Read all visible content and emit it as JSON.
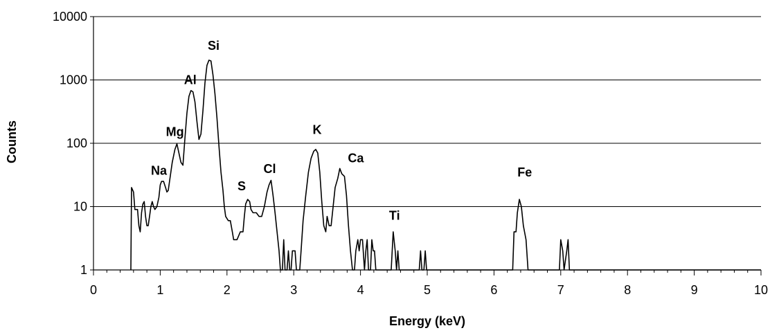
{
  "chart_data": {
    "type": "line",
    "title": "",
    "xlabel": "Energy (keV)",
    "ylabel": "Counts",
    "xlim": [
      0,
      10
    ],
    "ylim": [
      1,
      10000
    ],
    "yscale": "log",
    "grid": "horizontal",
    "legend": "none",
    "line_color": "#000000",
    "x_ticks": [
      "0",
      "1",
      "2",
      "3",
      "4",
      "5",
      "6",
      "7",
      "8",
      "9",
      "10"
    ],
    "y_ticks": [
      "1",
      "10",
      "100",
      "1000",
      "10000"
    ],
    "series": [
      {
        "points": [
          [
            0.56,
            1
          ],
          [
            0.57,
            20
          ],
          [
            0.6,
            17
          ],
          [
            0.62,
            9
          ],
          [
            0.64,
            9
          ],
          [
            0.66,
            9
          ],
          [
            0.68,
            5
          ],
          [
            0.7,
            4
          ],
          [
            0.72,
            8
          ],
          [
            0.74,
            11
          ],
          [
            0.76,
            12
          ],
          [
            0.78,
            7
          ],
          [
            0.8,
            5
          ],
          [
            0.82,
            5
          ],
          [
            0.84,
            7
          ],
          [
            0.86,
            10
          ],
          [
            0.88,
            12
          ],
          [
            0.9,
            10
          ],
          [
            0.92,
            9
          ],
          [
            0.95,
            10
          ],
          [
            0.98,
            14
          ],
          [
            1.0,
            22
          ],
          [
            1.02,
            25
          ],
          [
            1.05,
            25
          ],
          [
            1.08,
            20
          ],
          [
            1.1,
            17
          ],
          [
            1.12,
            18
          ],
          [
            1.15,
            30
          ],
          [
            1.18,
            50
          ],
          [
            1.22,
            80
          ],
          [
            1.25,
            98
          ],
          [
            1.28,
            70
          ],
          [
            1.31,
            50
          ],
          [
            1.34,
            45
          ],
          [
            1.37,
            120
          ],
          [
            1.4,
            300
          ],
          [
            1.43,
            550
          ],
          [
            1.46,
            680
          ],
          [
            1.49,
            650
          ],
          [
            1.52,
            450
          ],
          [
            1.55,
            220
          ],
          [
            1.58,
            115
          ],
          [
            1.61,
            140
          ],
          [
            1.64,
            330
          ],
          [
            1.67,
            900
          ],
          [
            1.7,
            1700
          ],
          [
            1.73,
            2050
          ],
          [
            1.76,
            2000
          ],
          [
            1.79,
            1200
          ],
          [
            1.82,
            600
          ],
          [
            1.85,
            250
          ],
          [
            1.88,
            90
          ],
          [
            1.91,
            35
          ],
          [
            1.94,
            18
          ],
          [
            1.96,
            10
          ],
          [
            1.98,
            7
          ],
          [
            2.02,
            6
          ],
          [
            2.05,
            6
          ],
          [
            2.08,
            4
          ],
          [
            2.1,
            3
          ],
          [
            2.15,
            3
          ],
          [
            2.2,
            4
          ],
          [
            2.24,
            4
          ],
          [
            2.26,
            7
          ],
          [
            2.28,
            11
          ],
          [
            2.31,
            13
          ],
          [
            2.34,
            12
          ],
          [
            2.36,
            9
          ],
          [
            2.39,
            8
          ],
          [
            2.44,
            8
          ],
          [
            2.48,
            7
          ],
          [
            2.52,
            7
          ],
          [
            2.56,
            10
          ],
          [
            2.6,
            17
          ],
          [
            2.63,
            22
          ],
          [
            2.66,
            26
          ],
          [
            2.69,
            15
          ],
          [
            2.72,
            8
          ],
          [
            2.75,
            4
          ],
          [
            2.78,
            2
          ],
          [
            2.8,
            1
          ],
          [
            2.83,
            1
          ],
          [
            2.85,
            3
          ],
          [
            2.87,
            1
          ],
          [
            2.9,
            1
          ],
          [
            2.92,
            2
          ],
          [
            2.94,
            1
          ],
          [
            2.96,
            1
          ],
          [
            2.98,
            2
          ],
          [
            3.02,
            2
          ],
          [
            3.04,
            1
          ],
          [
            3.09,
            1
          ],
          [
            3.11,
            2
          ],
          [
            3.14,
            6
          ],
          [
            3.18,
            15
          ],
          [
            3.22,
            35
          ],
          [
            3.26,
            58
          ],
          [
            3.3,
            75
          ],
          [
            3.33,
            80
          ],
          [
            3.36,
            70
          ],
          [
            3.39,
            35
          ],
          [
            3.42,
            12
          ],
          [
            3.45,
            5
          ],
          [
            3.48,
            4
          ],
          [
            3.5,
            7
          ],
          [
            3.53,
            5
          ],
          [
            3.56,
            5
          ],
          [
            3.59,
            10
          ],
          [
            3.62,
            20
          ],
          [
            3.66,
            28
          ],
          [
            3.69,
            40
          ],
          [
            3.72,
            33
          ],
          [
            3.76,
            30
          ],
          [
            3.79,
            15
          ],
          [
            3.82,
            5
          ],
          [
            3.85,
            2
          ],
          [
            3.88,
            1
          ],
          [
            3.91,
            1
          ],
          [
            3.93,
            2
          ],
          [
            3.96,
            3
          ],
          [
            3.98,
            2
          ],
          [
            4.0,
            3
          ],
          [
            4.03,
            3
          ],
          [
            4.06,
            1
          ],
          [
            4.08,
            2
          ],
          [
            4.1,
            3
          ],
          [
            4.12,
            1
          ],
          [
            4.15,
            1
          ],
          [
            4.17,
            3
          ],
          [
            4.19,
            2
          ],
          [
            4.21,
            2
          ],
          [
            4.23,
            1
          ],
          [
            4.46,
            1
          ],
          [
            4.49,
            4
          ],
          [
            4.52,
            2
          ],
          [
            4.54,
            1
          ],
          [
            4.56,
            2
          ],
          [
            4.58,
            1
          ],
          [
            4.88,
            1
          ],
          [
            4.9,
            2
          ],
          [
            4.92,
            1
          ],
          [
            4.95,
            1
          ],
          [
            4.97,
            2
          ],
          [
            4.99,
            1
          ],
          [
            6.28,
            1
          ],
          [
            6.3,
            4
          ],
          [
            6.33,
            4
          ],
          [
            6.35,
            8
          ],
          [
            6.38,
            13
          ],
          [
            6.41,
            10
          ],
          [
            6.44,
            5
          ],
          [
            6.48,
            3
          ],
          [
            6.51,
            1
          ],
          [
            6.98,
            1
          ],
          [
            7.0,
            3
          ],
          [
            7.03,
            2
          ],
          [
            7.05,
            1
          ],
          [
            7.09,
            2
          ],
          [
            7.11,
            3
          ],
          [
            7.13,
            1
          ],
          [
            7.16,
            1
          ],
          [
            7.18,
            1
          ],
          [
            10.0,
            1
          ]
        ]
      }
    ],
    "annotations": [
      {
        "label": "Na",
        "x": 0.98,
        "y": 32
      },
      {
        "label": "Mg",
        "x": 1.22,
        "y": 130
      },
      {
        "label": "Al",
        "x": 1.45,
        "y": 860
      },
      {
        "label": "Si",
        "x": 1.8,
        "y": 3000
      },
      {
        "label": "S",
        "x": 2.22,
        "y": 18
      },
      {
        "label": "Cl",
        "x": 2.64,
        "y": 34
      },
      {
        "label": "K",
        "x": 3.35,
        "y": 140
      },
      {
        "label": "Ca",
        "x": 3.93,
        "y": 50
      },
      {
        "label": "Ti",
        "x": 4.51,
        "y": 6.2
      },
      {
        "label": "Fe",
        "x": 6.46,
        "y": 30
      }
    ]
  }
}
